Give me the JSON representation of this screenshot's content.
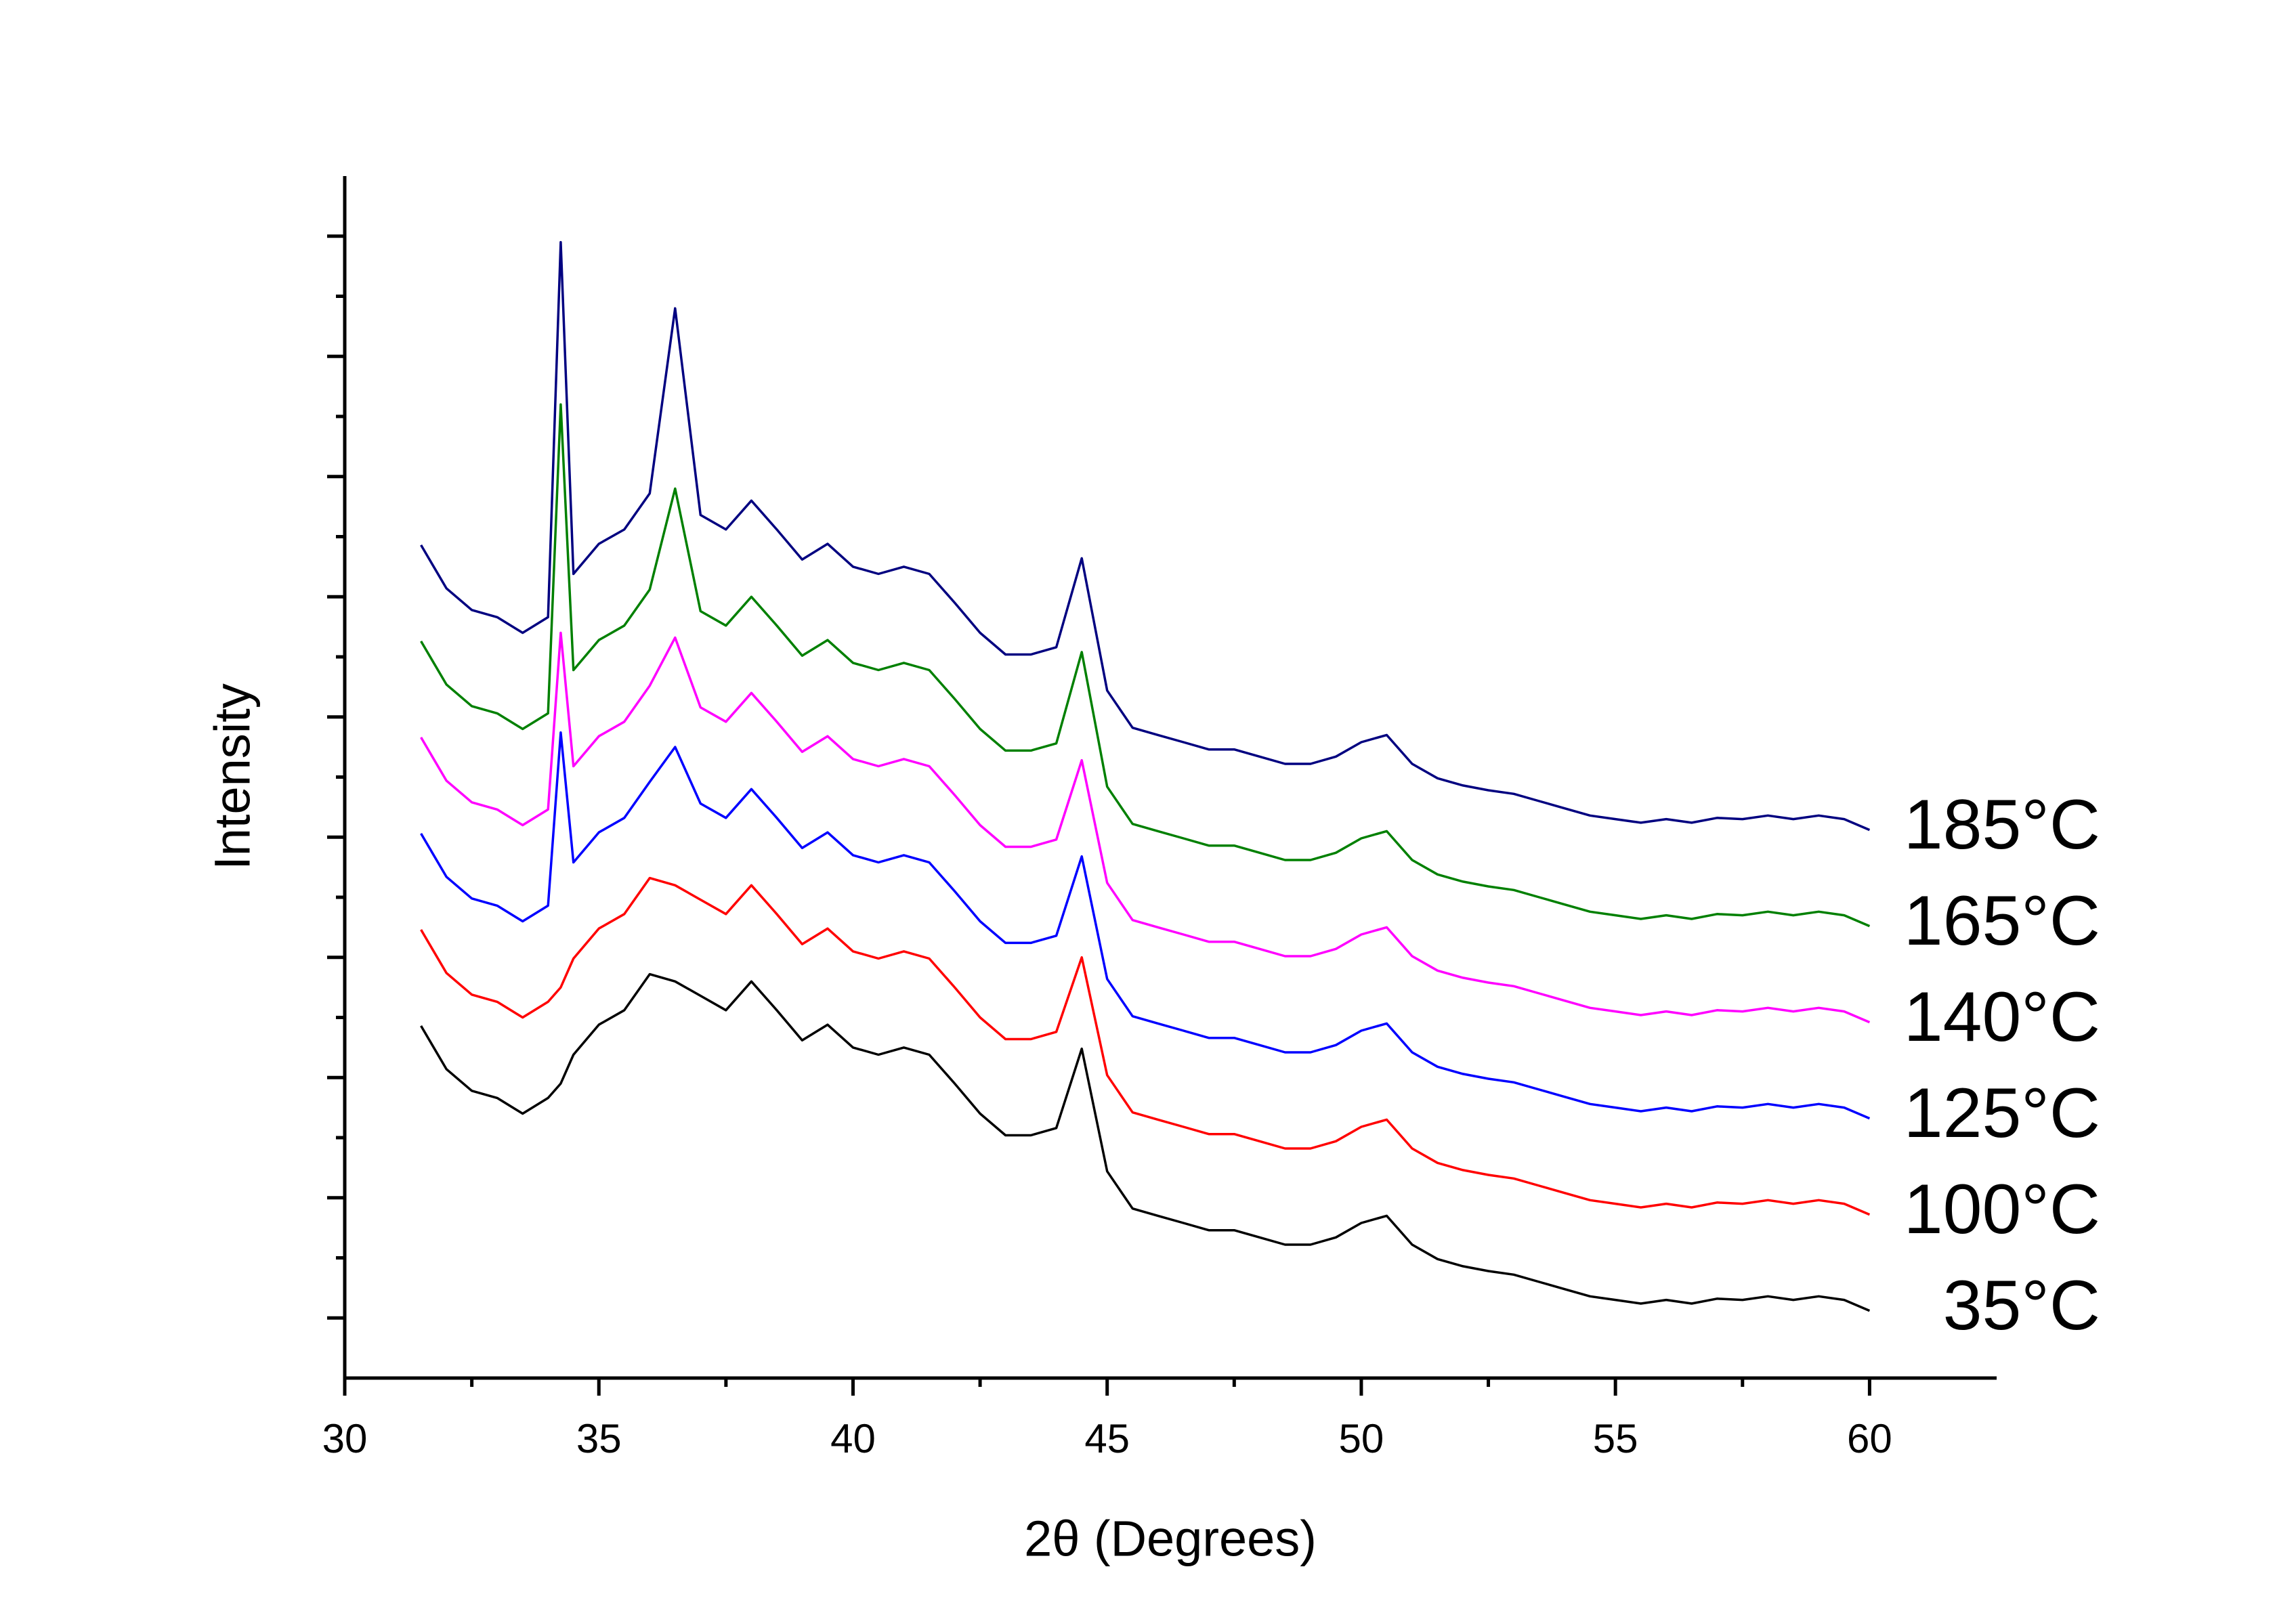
{
  "chart_data": {
    "type": "line",
    "xlabel": "2θ (Degrees)",
    "ylabel": "Intensity",
    "xlim": [
      30,
      62.5
    ],
    "xticks": [
      30,
      35,
      40,
      45,
      50,
      55,
      60
    ],
    "ylim": [
      0,
      100
    ],
    "yticks": [
      5,
      15,
      25,
      35,
      45,
      55,
      65,
      75,
      85,
      95
    ],
    "x": [
      31.5,
      32,
      32.5,
      33,
      33.5,
      34,
      34.25,
      34.5,
      35,
      35.5,
      36,
      36.5,
      37,
      37.5,
      38,
      38.5,
      39,
      39.5,
      40,
      40.5,
      41,
      41.5,
      42,
      42.5,
      43,
      43.5,
      44,
      44.5,
      45,
      45.5,
      46,
      46.5,
      47,
      47.5,
      48,
      48.5,
      49,
      49.5,
      50,
      50.5,
      51,
      51.5,
      52,
      52.5,
      53,
      53.5,
      54,
      54.5,
      55,
      55.5,
      56,
      56.5,
      57,
      57.5,
      58,
      58.5,
      59,
      59.5,
      60
    ],
    "series": [
      {
        "name": "35°C",
        "color": "#000000",
        "values": [
          29.3,
          25.7,
          23.9,
          23.3,
          22,
          23.3,
          24.5,
          26.9,
          29.4,
          30.6,
          33.6,
          33,
          31.8,
          30.6,
          33,
          30.6,
          28.1,
          29.4,
          27.5,
          26.9,
          27.5,
          26.9,
          24.5,
          22,
          20.2,
          20.2,
          20.8,
          27.4,
          17.2,
          14.1,
          13.5,
          12.9,
          12.3,
          12.3,
          11.7,
          11.1,
          11.1,
          11.7,
          12.9,
          13.5,
          11.1,
          9.9,
          9.3,
          8.9,
          8.6,
          8,
          7.4,
          6.8,
          6.5,
          6.2,
          6.5,
          6.2,
          6.6,
          6.5,
          6.8,
          6.5,
          6.8,
          6.5,
          5.6
        ]
      },
      {
        "name": "100°C",
        "color": "#ff0000",
        "values": [
          37.3,
          33.7,
          31.9,
          31.3,
          30,
          31.3,
          32.5,
          34.9,
          37.4,
          38.6,
          41.6,
          41,
          39.8,
          38.6,
          41,
          38.6,
          36.1,
          37.4,
          35.5,
          34.9,
          35.5,
          34.9,
          32.5,
          30,
          28.2,
          28.2,
          28.8,
          35,
          25.2,
          22.1,
          21.5,
          20.9,
          20.3,
          20.3,
          19.7,
          19.1,
          19.1,
          19.7,
          20.9,
          21.5,
          19.1,
          17.9,
          17.3,
          16.9,
          16.6,
          16,
          15.4,
          14.8,
          14.5,
          14.2,
          14.5,
          14.2,
          14.6,
          14.5,
          14.8,
          14.5,
          14.8,
          14.5,
          13.6
        ]
      },
      {
        "name": "125°C",
        "color": "#0000ff",
        "values": [
          45.3,
          41.7,
          39.9,
          39.3,
          38,
          39.3,
          53.7,
          42.9,
          45.4,
          46.6,
          49.6,
          52.5,
          47.8,
          46.6,
          49,
          46.6,
          44.1,
          45.4,
          43.5,
          42.9,
          43.5,
          42.9,
          40.5,
          38,
          36.2,
          36.2,
          36.8,
          43.4,
          33.2,
          30.1,
          29.5,
          28.9,
          28.3,
          28.3,
          27.7,
          27.1,
          27.1,
          27.7,
          28.9,
          29.5,
          27.1,
          25.9,
          25.3,
          24.9,
          24.6,
          24,
          23.4,
          22.8,
          22.5,
          22.2,
          22.5,
          22.2,
          22.6,
          22.5,
          22.8,
          22.5,
          22.8,
          22.5,
          21.6
        ]
      },
      {
        "name": "140°C",
        "color": "#ff00ff",
        "values": [
          53.3,
          49.7,
          47.9,
          47.3,
          46,
          47.3,
          62,
          50.9,
          53.4,
          54.6,
          57.6,
          61.6,
          55.8,
          54.6,
          57,
          54.6,
          52.1,
          53.4,
          51.5,
          50.9,
          51.5,
          50.9,
          48.5,
          46,
          44.2,
          44.2,
          44.8,
          51.4,
          41.2,
          38.1,
          37.5,
          36.9,
          36.3,
          36.3,
          35.7,
          35.1,
          35.1,
          35.7,
          36.9,
          37.5,
          35.1,
          33.9,
          33.3,
          32.9,
          32.6,
          32,
          31.4,
          30.8,
          30.5,
          30.2,
          30.5,
          30.2,
          30.6,
          30.5,
          30.8,
          30.5,
          30.8,
          30.5,
          29.6
        ]
      },
      {
        "name": "165°C",
        "color": "#008000",
        "values": [
          61.3,
          57.7,
          55.9,
          55.3,
          54,
          55.3,
          81,
          58.9,
          61.4,
          62.6,
          65.6,
          74,
          63.8,
          62.6,
          65,
          62.6,
          60.1,
          61.4,
          59.5,
          58.9,
          59.5,
          58.9,
          56.5,
          54,
          52.2,
          52.2,
          52.8,
          60.4,
          49.2,
          46.1,
          45.5,
          44.9,
          44.3,
          44.3,
          43.7,
          43.1,
          43.1,
          43.7,
          44.9,
          45.5,
          43.1,
          41.9,
          41.3,
          40.9,
          40.6,
          40,
          39.4,
          38.8,
          38.5,
          38.2,
          38.5,
          38.2,
          38.6,
          38.5,
          38.8,
          38.5,
          38.8,
          38.5,
          37.6
        ]
      },
      {
        "name": "185°C",
        "color": "#000080",
        "values": [
          69.3,
          65.7,
          63.9,
          63.3,
          62,
          63.3,
          94.5,
          66.9,
          69.4,
          70.6,
          73.6,
          89,
          71.8,
          70.6,
          73,
          70.6,
          68.1,
          69.4,
          67.5,
          66.9,
          67.5,
          66.9,
          64.5,
          62,
          60.2,
          60.2,
          60.8,
          68.2,
          57.2,
          54.1,
          53.5,
          52.9,
          52.3,
          52.3,
          51.7,
          51.1,
          51.1,
          51.7,
          52.9,
          53.5,
          51.1,
          49.9,
          49.3,
          48.9,
          48.6,
          48,
          47.4,
          46.8,
          46.5,
          46.2,
          46.5,
          46.2,
          46.6,
          46.5,
          46.8,
          46.5,
          46.8,
          46.5,
          45.6
        ]
      }
    ]
  }
}
